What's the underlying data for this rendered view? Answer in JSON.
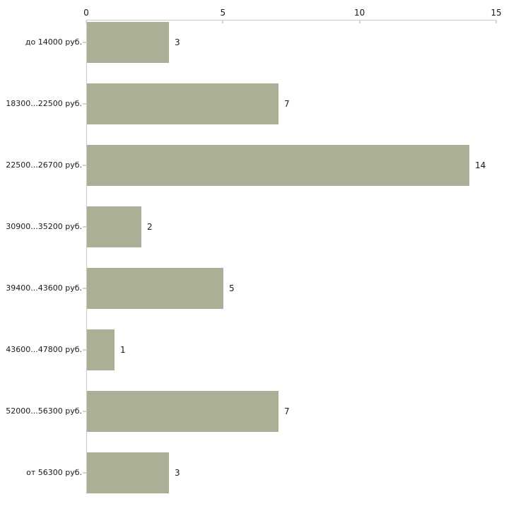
{
  "chart_data": {
    "type": "bar",
    "orientation": "horizontal",
    "title": "",
    "xlabel": "",
    "ylabel": "",
    "categories": [
      "до 14000 руб.",
      "18300...22500 руб.",
      "22500...26700 руб.",
      "30900...35200 руб.",
      "39400...43600 руб.",
      "43600...47800 руб.",
      "52000...56300 руб.",
      "от 56300 руб."
    ],
    "values": [
      3,
      7,
      14,
      2,
      5,
      1,
      7,
      3
    ],
    "value_labels": [
      "3",
      "7",
      "14",
      "2",
      "5",
      "1",
      "7",
      "3"
    ],
    "x_ticks": [
      "0",
      "5",
      "10",
      "15"
    ],
    "xlim": [
      0,
      15
    ],
    "grid": "off",
    "legend": "none",
    "x_axis_position": "top",
    "colors": {
      "bar": "#aab096",
      "axis_line": "#cbcbc8",
      "tick": "#d9d5ae",
      "text": "#1a1a1a",
      "background": "#ffffff"
    }
  }
}
